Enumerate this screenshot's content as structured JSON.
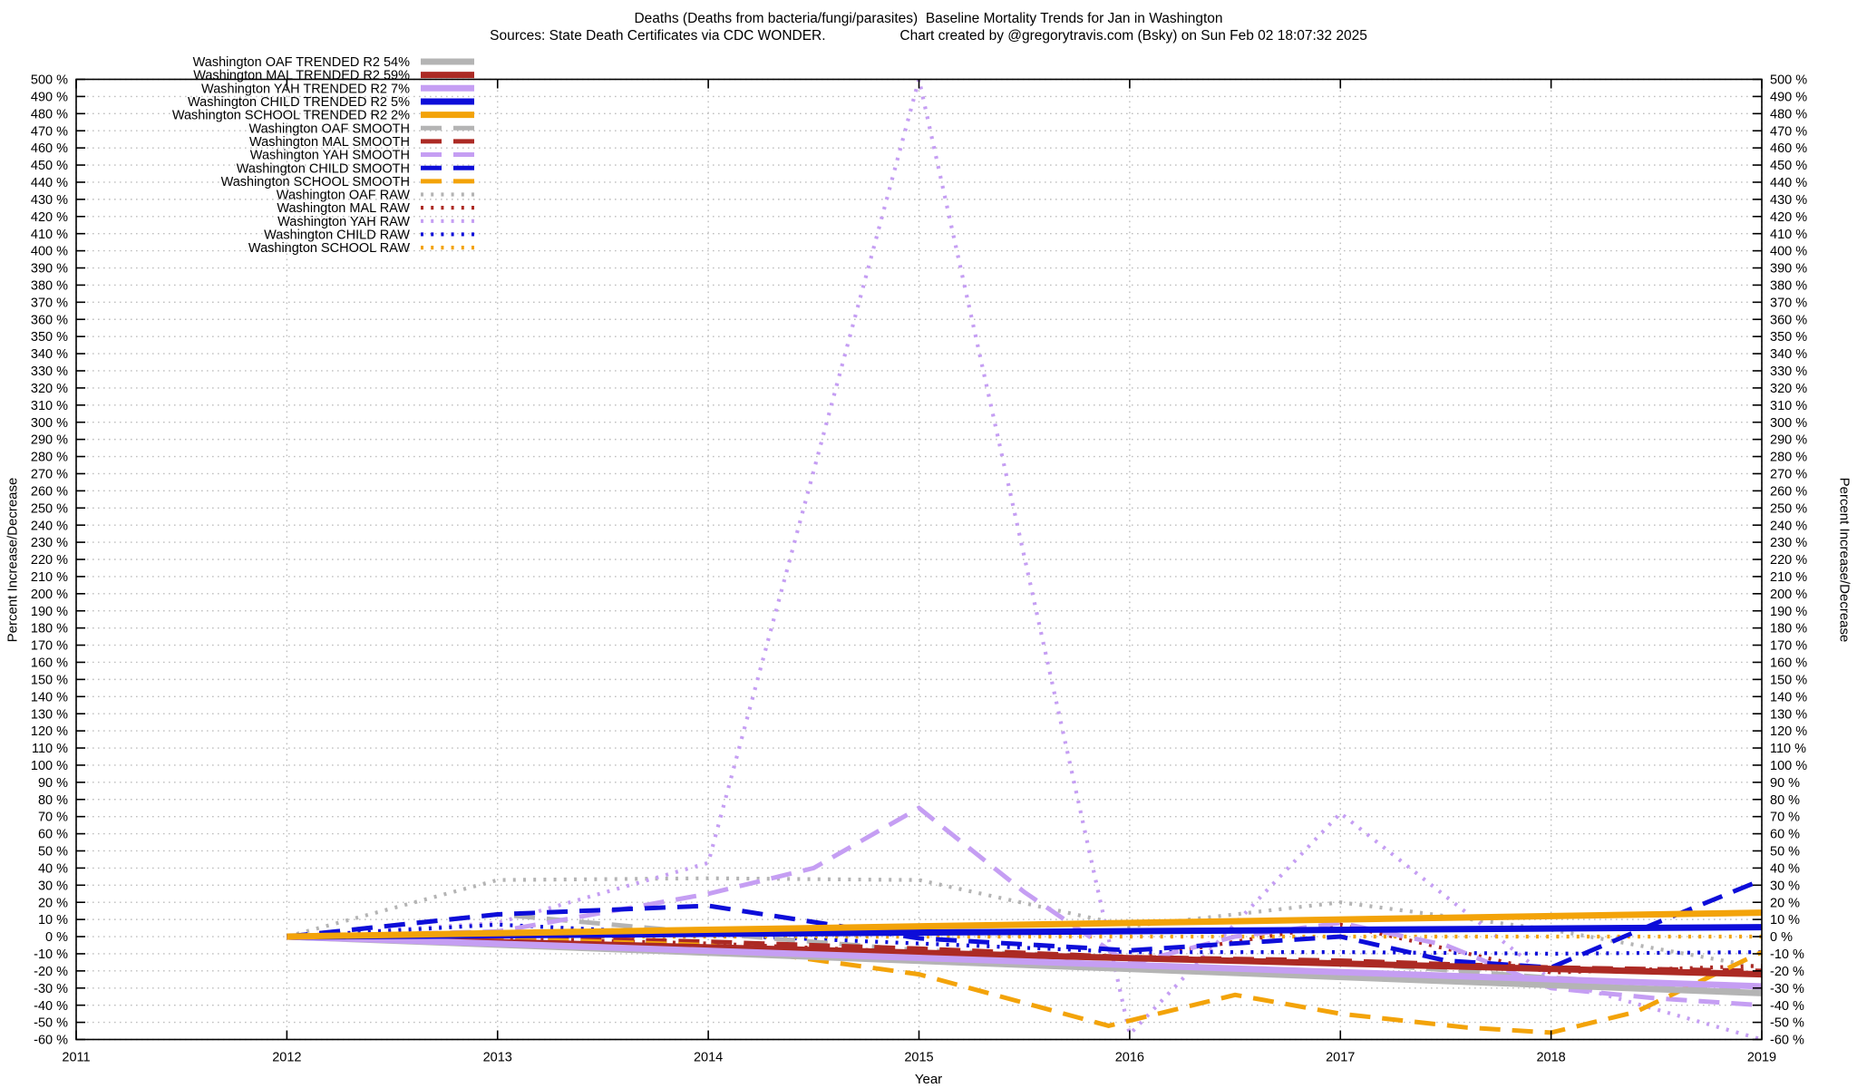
{
  "header": {
    "title_line1": "Deaths (Deaths from bacteria/fungi/parasites)  Baseline Mortality Trends for Jan in Washington",
    "title_line2": "Sources: State Death Certificates via CDC WONDER.                   Chart created by @gregorytravis.com (Bsky) on Sun Feb 02 18:07:32 2025"
  },
  "axes": {
    "y_left_label": "Percent Increase/Decrease",
    "y_right_label": "Percent Increase/Decrease",
    "x_label": "Year",
    "y_min": -60,
    "y_max": 500,
    "y_step": 10,
    "y_tick_suffix": " %",
    "x_ticks": [
      2011,
      2012,
      2013,
      2014,
      2015,
      2016,
      2017,
      2018,
      2019
    ]
  },
  "colors": {
    "oaf": "#b4b4b4",
    "mal": "#ac2a24",
    "yah": "#c59ef3",
    "child": "#0d0dd9",
    "school": "#f3a309",
    "grid": "#bfbfbf",
    "axis": "#000000",
    "background": "#ffffff"
  },
  "chart_data": {
    "type": "line",
    "title": "Deaths (Deaths from bacteria/fungi/parasites)  Baseline Mortality Trends for Jan in Washington",
    "subtitle": "Sources: State Death Certificates via CDC WONDER.  Chart created by @gregorytravis.com (Bsky) on Sun Feb 02 18:07:32 2025",
    "xlabel": "Year",
    "ylabel": "Percent Increase/Decrease",
    "xlim": [
      2011,
      2019
    ],
    "ylim": [
      -60,
      500
    ],
    "grid": true,
    "legend_position": "top-left",
    "series": [
      {
        "name": "washington-oaf-trended",
        "legend_label": "Washington OAF TRENDED R2  54%",
        "color": "#b4b4b4",
        "style": "solid",
        "points": [
          [
            2012,
            0
          ],
          [
            2019,
            -33
          ]
        ]
      },
      {
        "name": "washington-mal-trended",
        "legend_label": "Washington MAL TRENDED R2  59%",
        "color": "#ac2a24",
        "style": "solid",
        "points": [
          [
            2012,
            0
          ],
          [
            2019,
            -22
          ]
        ]
      },
      {
        "name": "washington-yah-trended",
        "legend_label": "Washington YAH TRENDED R2   7%",
        "color": "#c59ef3",
        "style": "solid",
        "points": [
          [
            2012,
            0
          ],
          [
            2019,
            -29
          ]
        ]
      },
      {
        "name": "washington-child-trended",
        "legend_label": "Washington CHILD TRENDED R2   5%",
        "color": "#0d0dd9",
        "style": "solid",
        "points": [
          [
            2012,
            0
          ],
          [
            2019,
            5.5
          ]
        ]
      },
      {
        "name": "washington-school-trended",
        "legend_label": "Washington SCHOOL TRENDED R2   2%",
        "color": "#f3a309",
        "style": "solid",
        "points": [
          [
            2012,
            0
          ],
          [
            2019,
            14
          ]
        ]
      },
      {
        "name": "washington-oaf-smooth",
        "legend_label": "Washington OAF SMOOTH",
        "color": "#b4b4b4",
        "style": "dashed",
        "points": [
          [
            2012,
            0
          ],
          [
            2013,
            13
          ],
          [
            2014,
            2
          ],
          [
            2015,
            -8
          ],
          [
            2016,
            -12
          ],
          [
            2017,
            -15
          ],
          [
            2018,
            -24
          ],
          [
            2019,
            -31
          ]
        ]
      },
      {
        "name": "washington-mal-smooth",
        "legend_label": "Washington MAL SMOOTH",
        "color": "#ac2a24",
        "style": "dashed",
        "points": [
          [
            2012,
            0
          ],
          [
            2013,
            0
          ],
          [
            2014,
            -3
          ],
          [
            2015,
            -7
          ],
          [
            2016,
            -12
          ],
          [
            2017,
            -14
          ],
          [
            2018,
            -18
          ],
          [
            2019,
            -20
          ]
        ]
      },
      {
        "name": "washington-yah-smooth",
        "legend_label": "Washington YAH SMOOTH",
        "color": "#c59ef3",
        "style": "dashed",
        "points": [
          [
            2012,
            0
          ],
          [
            2013,
            3
          ],
          [
            2014,
            25
          ],
          [
            2014.5,
            40
          ],
          [
            2015,
            75
          ],
          [
            2015.5,
            26
          ],
          [
            2016,
            -16
          ],
          [
            2016.5,
            0
          ],
          [
            2017,
            8
          ],
          [
            2017.5,
            -5
          ],
          [
            2018,
            -30
          ],
          [
            2018.5,
            -36
          ],
          [
            2019,
            -40
          ]
        ]
      },
      {
        "name": "washington-child-smooth",
        "legend_label": "Washington CHILD SMOOTH",
        "color": "#0d0dd9",
        "style": "dashed",
        "points": [
          [
            2012,
            0
          ],
          [
            2013,
            13
          ],
          [
            2014,
            18
          ],
          [
            2015,
            -1
          ],
          [
            2016,
            -8
          ],
          [
            2017,
            0
          ],
          [
            2017.5,
            -14
          ],
          [
            2018,
            -18
          ],
          [
            2018.5,
            8
          ],
          [
            2019,
            33
          ]
        ]
      },
      {
        "name": "washington-school-smooth",
        "legend_label": "Washington SCHOOL SMOOTH",
        "color": "#f3a309",
        "style": "dashed",
        "points": [
          [
            2012,
            0
          ],
          [
            2013,
            -1
          ],
          [
            2014,
            -5
          ],
          [
            2015,
            -22
          ],
          [
            2015.9,
            -52
          ],
          [
            2016.5,
            -34
          ],
          [
            2017,
            -45
          ],
          [
            2017.6,
            -53
          ],
          [
            2018,
            -56
          ],
          [
            2018.4,
            -44
          ],
          [
            2019,
            -9
          ]
        ]
      },
      {
        "name": "washington-oaf-raw",
        "legend_label": "Washington OAF RAW",
        "color": "#b4b4b4",
        "style": "dotted",
        "points": [
          [
            2012,
            0
          ],
          [
            2013,
            33
          ],
          [
            2014,
            34
          ],
          [
            2015,
            33
          ],
          [
            2016,
            6
          ],
          [
            2017,
            20
          ],
          [
            2018,
            4
          ],
          [
            2019,
            -18
          ]
        ]
      },
      {
        "name": "washington-mal-raw",
        "legend_label": "Washington MAL RAW",
        "color": "#ac2a24",
        "style": "dotted",
        "points": [
          [
            2012,
            0
          ],
          [
            2013,
            -1
          ],
          [
            2014,
            -4
          ],
          [
            2015,
            -9
          ],
          [
            2016,
            -13
          ],
          [
            2017,
            7
          ],
          [
            2018,
            -21
          ],
          [
            2019,
            -17
          ]
        ]
      },
      {
        "name": "washington-yah-raw",
        "legend_label": "Washington YAH RAW",
        "color": "#c59ef3",
        "style": "dotted",
        "points": [
          [
            2012,
            0
          ],
          [
            2013,
            8
          ],
          [
            2014,
            43
          ],
          [
            2015,
            500
          ],
          [
            2016,
            -57
          ],
          [
            2017,
            72
          ],
          [
            2018,
            -25
          ],
          [
            2019,
            -60
          ]
        ]
      },
      {
        "name": "washington-child-raw",
        "legend_label": "Washington CHILD RAW",
        "color": "#0d0dd9",
        "style": "dotted",
        "points": [
          [
            2012,
            0
          ],
          [
            2013,
            7
          ],
          [
            2014,
            1
          ],
          [
            2015,
            -4
          ],
          [
            2016,
            -9
          ],
          [
            2017,
            -9
          ],
          [
            2018,
            -10
          ],
          [
            2019,
            -9
          ]
        ]
      },
      {
        "name": "washington-school-raw",
        "legend_label": "Washington SCHOOL RAW",
        "color": "#f3a309",
        "style": "dotted",
        "points": [
          [
            2012,
            0
          ],
          [
            2013,
            0
          ],
          [
            2014,
            0
          ],
          [
            2015,
            0
          ],
          [
            2016,
            0
          ],
          [
            2017,
            0
          ],
          [
            2018,
            0
          ],
          [
            2019,
            0
          ]
        ]
      }
    ]
  }
}
